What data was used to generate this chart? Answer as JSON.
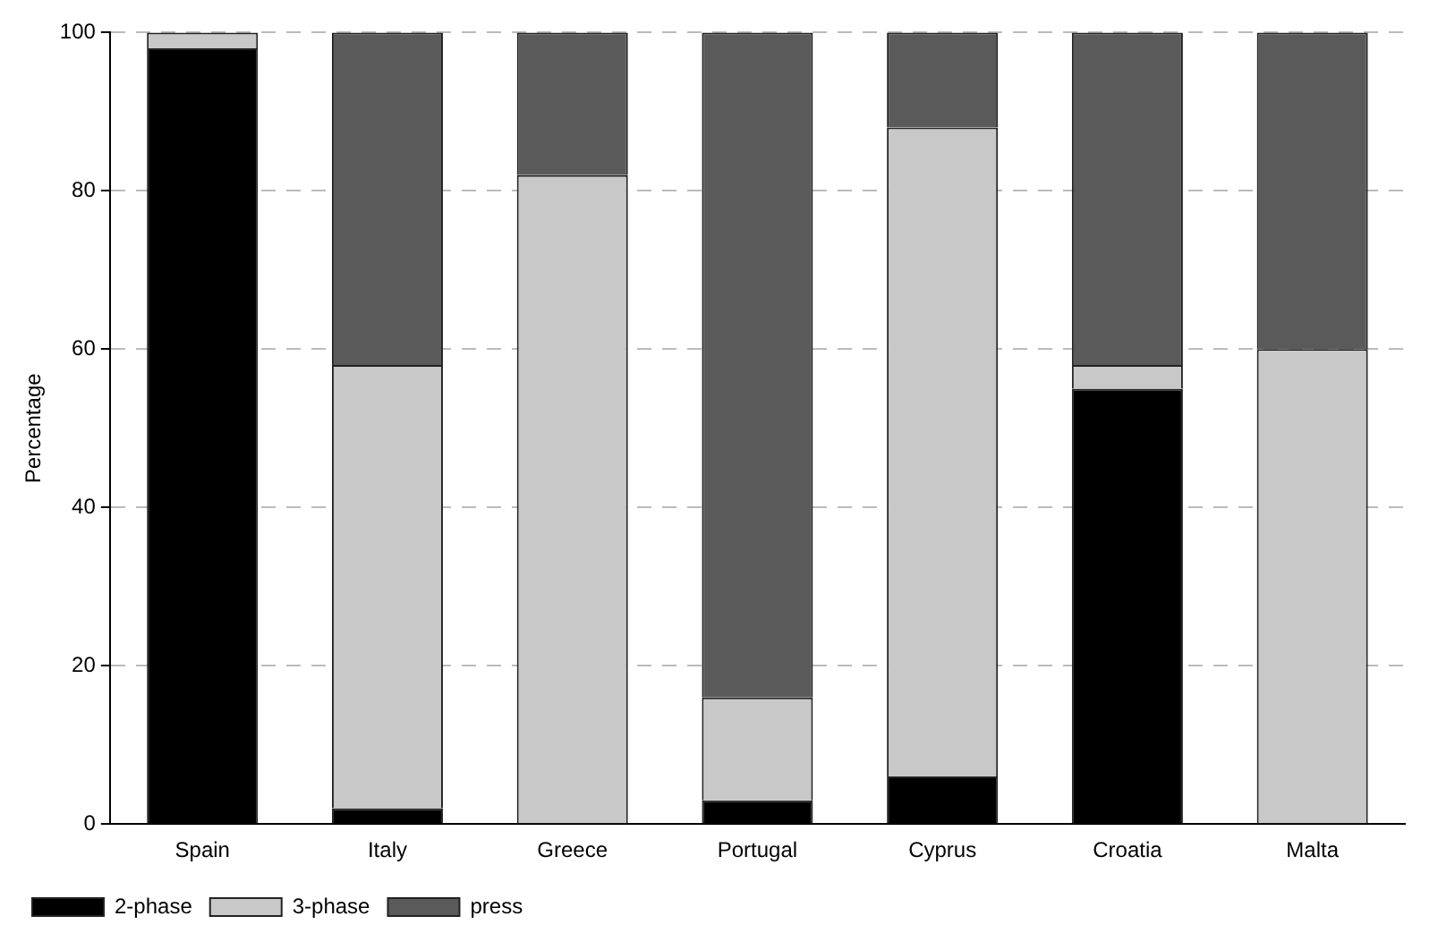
{
  "chart_data": {
    "type": "bar",
    "stacked": true,
    "ylabel": "Percentage",
    "categories": [
      "Spain",
      "Italy",
      "Greece",
      "Portugal",
      "Cyprus",
      "Croatia",
      "Malta"
    ],
    "series": [
      {
        "name": "2-phase",
        "color": "#000000",
        "values": [
          98,
          2,
          0,
          3,
          6,
          55,
          0
        ]
      },
      {
        "name": "3-phase",
        "color": "#c8c8c8",
        "values": [
          2,
          56,
          82,
          13,
          82,
          3,
          60
        ]
      },
      {
        "name": "press",
        "color": "#5a5a5a",
        "values": [
          0,
          42,
          18,
          84,
          12,
          42,
          40
        ]
      }
    ],
    "ylim": [
      0,
      100
    ],
    "yticks": [
      0,
      20,
      40,
      60,
      80,
      100
    ],
    "grid": "y",
    "legend": "bottom left"
  }
}
